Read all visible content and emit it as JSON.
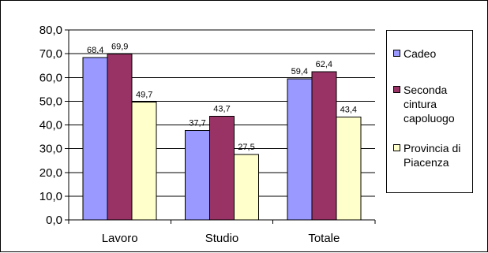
{
  "chart_data": {
    "type": "bar",
    "categories": [
      "Lavoro",
      "Studio",
      "Totale"
    ],
    "series": [
      {
        "name": "Cadeo",
        "values": [
          68.4,
          37.7,
          59.4
        ],
        "labels": [
          "68,4",
          "37,7",
          "59,4"
        ],
        "color": "#9999ff"
      },
      {
        "name": "Seconda cintura capoluogo",
        "values": [
          69.9,
          43.7,
          62.4
        ],
        "labels": [
          "69,9",
          "43,7",
          "62,4"
        ],
        "color": "#993366"
      },
      {
        "name": "Provincia di Piacenza",
        "values": [
          49.7,
          27.5,
          43.4
        ],
        "labels": [
          "49,7",
          "27,5",
          "43,4"
        ],
        "color": "#ffffcc"
      }
    ],
    "ylim": [
      0,
      80
    ],
    "yticks": [
      0,
      10,
      20,
      30,
      40,
      50,
      60,
      70,
      80
    ],
    "ytick_labels": [
      "0,0",
      "10,0",
      "20,0",
      "30,0",
      "40,0",
      "50,0",
      "60,0",
      "70,0",
      "80,0"
    ],
    "grid": true,
    "legend_position": "right",
    "title": "",
    "xlabel": "",
    "ylabel": ""
  },
  "legend": {
    "items": [
      {
        "label": "Cadeo",
        "color": "#9999ff"
      },
      {
        "label": "Seconda\ncintura\ncapoluogo",
        "color": "#993366"
      },
      {
        "label": "Provincia di\nPiacenza",
        "color": "#ffffcc"
      }
    ]
  }
}
